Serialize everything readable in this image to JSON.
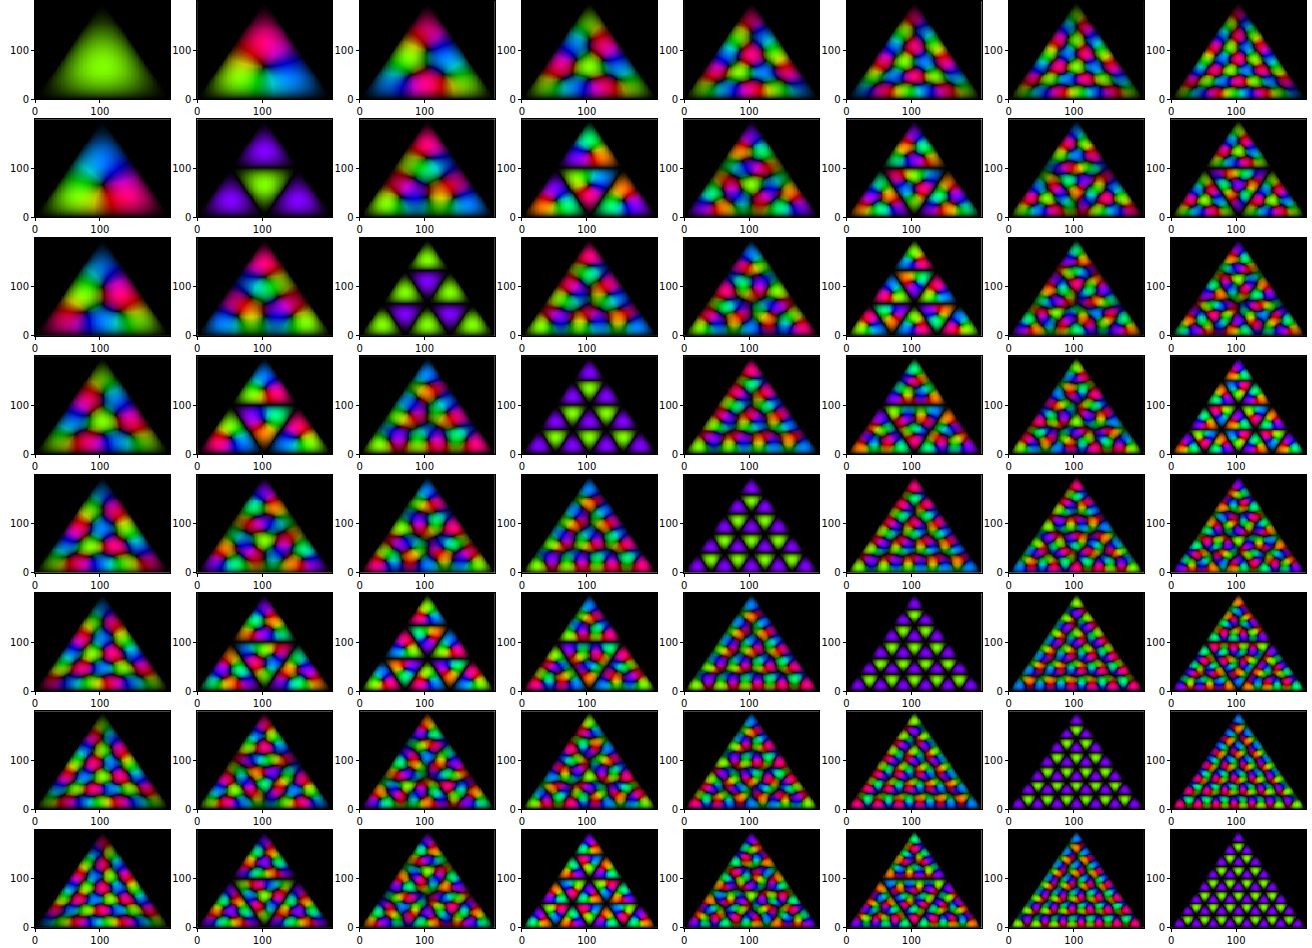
{
  "chart_data": {
    "type": "image_grid",
    "xlim": [
      0,
      208
    ],
    "ylim": [
      0,
      200
    ],
    "xticks": [
      0,
      100
    ],
    "yticks": [
      0,
      100
    ],
    "modes": [
      [
        [
          1,
          1
        ],
        [
          1,
          2
        ],
        [
          1,
          3
        ],
        [
          1,
          4
        ],
        [
          1,
          5
        ],
        [
          1,
          6
        ],
        [
          1,
          7
        ],
        [
          1,
          8
        ]
      ],
      [
        [
          2,
          1
        ],
        [
          2,
          2
        ],
        [
          2,
          3
        ],
        [
          2,
          4
        ],
        [
          2,
          5
        ],
        [
          2,
          6
        ],
        [
          2,
          7
        ],
        [
          2,
          8
        ]
      ],
      [
        [
          3,
          1
        ],
        [
          3,
          2
        ],
        [
          3,
          3
        ],
        [
          3,
          4
        ],
        [
          3,
          5
        ],
        [
          3,
          6
        ],
        [
          3,
          7
        ],
        [
          3,
          8
        ]
      ],
      [
        [
          4,
          1
        ],
        [
          4,
          2
        ],
        [
          4,
          3
        ],
        [
          4,
          4
        ],
        [
          4,
          5
        ],
        [
          4,
          6
        ],
        [
          4,
          7
        ],
        [
          4,
          8
        ]
      ],
      [
        [
          5,
          1
        ],
        [
          5,
          2
        ],
        [
          5,
          3
        ],
        [
          5,
          4
        ],
        [
          5,
          5
        ],
        [
          5,
          6
        ],
        [
          5,
          7
        ],
        [
          5,
          8
        ]
      ],
      [
        [
          6,
          1
        ],
        [
          6,
          2
        ],
        [
          6,
          3
        ],
        [
          6,
          4
        ],
        [
          6,
          5
        ],
        [
          6,
          6
        ],
        [
          6,
          7
        ],
        [
          6,
          8
        ]
      ],
      [
        [
          7,
          1
        ],
        [
          7,
          2
        ],
        [
          7,
          3
        ],
        [
          7,
          4
        ],
        [
          7,
          5
        ],
        [
          7,
          6
        ],
        [
          7,
          7
        ],
        [
          7,
          8
        ]
      ],
      [
        [
          8,
          1
        ],
        [
          8,
          2
        ],
        [
          8,
          3
        ],
        [
          8,
          4
        ],
        [
          8,
          5
        ],
        [
          8,
          6
        ],
        [
          8,
          7
        ],
        [
          8,
          8
        ]
      ]
    ]
  }
}
